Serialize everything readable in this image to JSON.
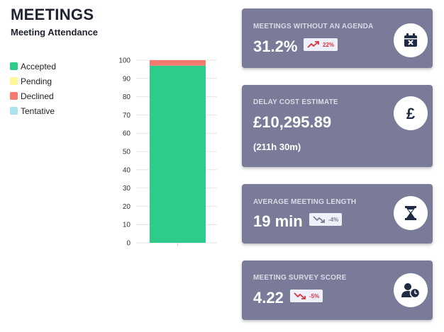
{
  "header": {
    "title": "MEETINGS",
    "subtitle": "Meeting Attendance"
  },
  "legend": [
    {
      "label": "Accepted",
      "color": "#2ecc8a"
    },
    {
      "label": "Pending",
      "color": "#fff59a"
    },
    {
      "label": "Declined",
      "color": "#f4796f"
    },
    {
      "label": "Tentative",
      "color": "#a8e3ee"
    }
  ],
  "chart_data": {
    "type": "bar",
    "stacked": true,
    "categories": [
      ""
    ],
    "series": [
      {
        "name": "Accepted",
        "values": [
          97
        ],
        "color": "#2ecc8a"
      },
      {
        "name": "Pending",
        "values": [
          0
        ],
        "color": "#fff59a"
      },
      {
        "name": "Declined",
        "values": [
          3
        ],
        "color": "#f4796f"
      },
      {
        "name": "Tentative",
        "values": [
          0
        ],
        "color": "#a8e3ee"
      }
    ],
    "yticks": [
      "0",
      "10",
      "20",
      "30",
      "40",
      "50",
      "60",
      "70",
      "80",
      "90",
      "100"
    ],
    "ylim": [
      0,
      100
    ],
    "grid": true,
    "legend_position": "left"
  },
  "cards": [
    {
      "label": "MEETINGS WITHOUT AN AGENDA",
      "value": "31.2%",
      "badge": {
        "text": "22%",
        "trend": "up",
        "color": "#e0323c"
      },
      "icon": "calendar-x-icon"
    },
    {
      "label": "DELAY COST ESTIMATE",
      "value": "£10,295.89",
      "sub": "(211h 30m)",
      "icon": "pound-icon"
    },
    {
      "label": "AVERAGE MEETING LENGTH",
      "value": "19 min",
      "badge": {
        "text": "-4%",
        "trend": "down",
        "color": "#7a7f8f"
      },
      "icon": "hourglass-icon"
    },
    {
      "label": "MEETING SURVEY SCORE",
      "value": "4.22",
      "badge": {
        "text": "-5%",
        "trend": "down",
        "color": "#e0323c"
      },
      "icon": "user-clock-icon"
    }
  ]
}
